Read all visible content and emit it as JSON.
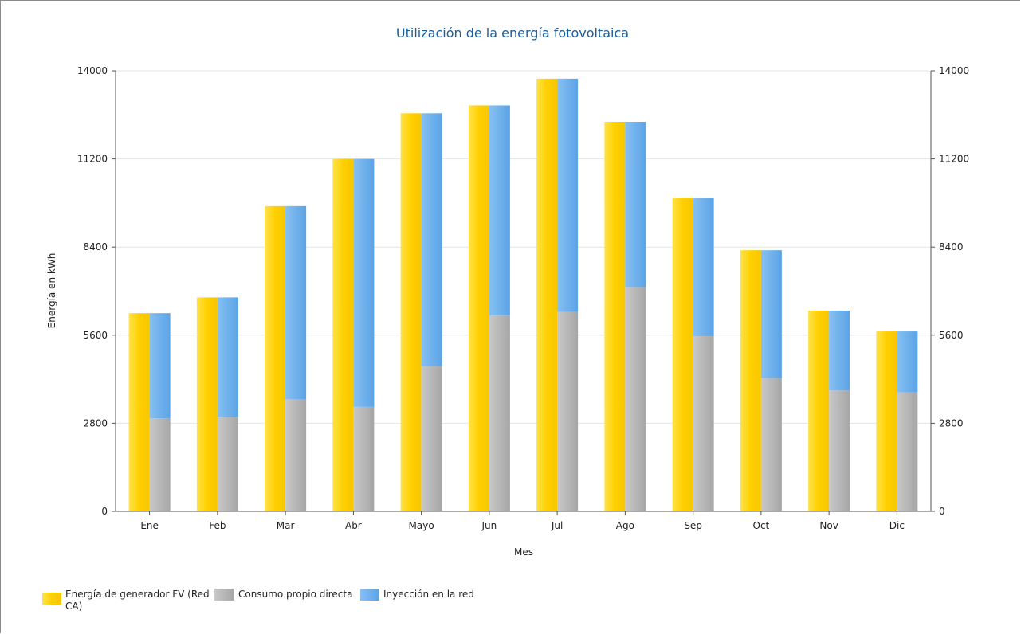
{
  "chart_data": {
    "type": "bar",
    "title": "Utilización de la energía fotovoltaica",
    "xlabel": "Mes",
    "ylabel": "Energía en kWh",
    "ylim": [
      0,
      14000
    ],
    "yticks": [
      "0",
      "2800",
      "5600",
      "8400",
      "11200",
      "14000"
    ],
    "ytick_values": [
      0,
      2800,
      5600,
      8400,
      11200,
      14000
    ],
    "grid": true,
    "legend_position": "bottom-left",
    "categories": [
      "Ene",
      "Feb",
      "Mar",
      "Abr",
      "Mayo",
      "Jun",
      "Jul",
      "Ago",
      "Sep",
      "Oct",
      "Nov",
      "Dic"
    ],
    "series": [
      {
        "name": "Energía de generador FV (Red CA)",
        "values": [
          6300,
          6800,
          9700,
          11200,
          12650,
          12900,
          13750,
          12380,
          9970,
          8300,
          6380,
          5720
        ],
        "stack": "a"
      },
      {
        "name": "Consumo propio directa",
        "values": [
          2960,
          3010,
          3570,
          3320,
          4620,
          6220,
          6340,
          7130,
          5570,
          4240,
          3840,
          3780
        ],
        "stack": "b"
      },
      {
        "name": "Inyección en la red",
        "values": [
          3340,
          3790,
          6130,
          7880,
          8030,
          6680,
          7410,
          5250,
          4400,
          4060,
          2540,
          1940
        ],
        "stack": "b"
      }
    ],
    "colors": {
      "generator": "#ffd21a",
      "self": "#b4b4b4",
      "grid": "#6aacea"
    }
  }
}
